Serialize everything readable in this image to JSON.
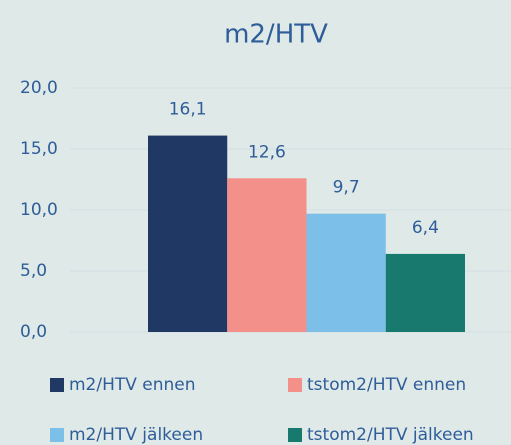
{
  "chart_data": {
    "type": "bar",
    "title": "m2/HTV",
    "categories": [
      null
    ],
    "series": [
      {
        "name": "m2/HTV ennen",
        "color": "#203864",
        "values": [
          16.1
        ],
        "value_labels": [
          "16,1"
        ]
      },
      {
        "name": "tstom2/HTV ennen",
        "color": "#f4908a",
        "values": [
          12.6
        ],
        "value_labels": [
          "12,6"
        ]
      },
      {
        "name": "m2/HTV jälkeen",
        "color": "#7cbfe8",
        "values": [
          9.7
        ],
        "value_labels": [
          "9,7"
        ]
      },
      {
        "name": "tstom2/HTV jälkeen",
        "color": "#187a6e",
        "values": [
          6.4
        ],
        "value_labels": [
          "6,4"
        ]
      }
    ],
    "ylim": [
      0,
      20
    ],
    "yticks": [
      {
        "value": 0,
        "label": "0,0"
      },
      {
        "value": 5,
        "label": "5,0"
      },
      {
        "value": 10,
        "label": "10,0"
      },
      {
        "value": 15,
        "label": "15,0"
      },
      {
        "value": 20,
        "label": "20,0"
      }
    ],
    "grid": true,
    "legend": "bottom"
  }
}
